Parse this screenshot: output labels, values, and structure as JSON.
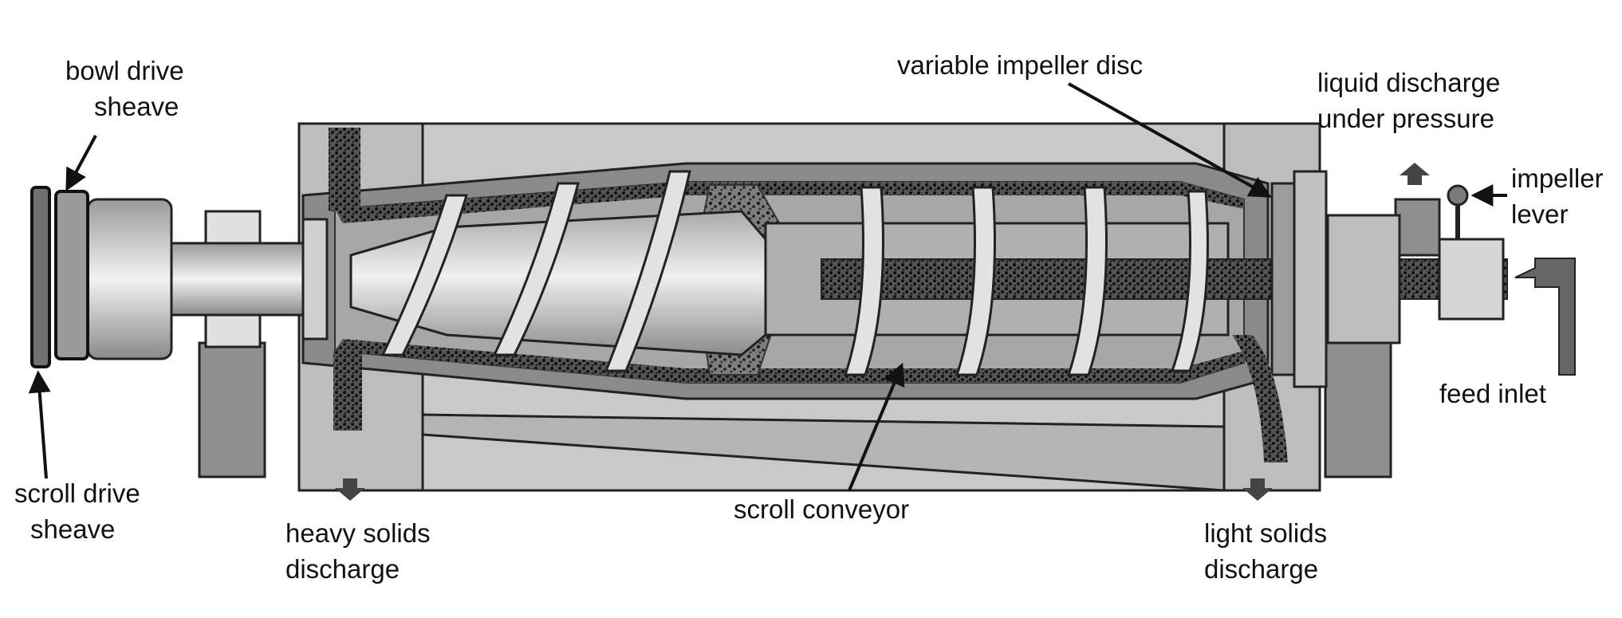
{
  "labels": {
    "bowl_drive_sheave": [
      "bowl drive",
      "sheave"
    ],
    "scroll_drive_sheave": [
      "scroll drive",
      "sheave"
    ],
    "variable_impeller_disc": [
      "variable impeller disc"
    ],
    "liquid_discharge": [
      "liquid discharge",
      "under pressure"
    ],
    "impeller_lever": [
      "impeller",
      "lever"
    ],
    "feed_inlet": [
      "feed inlet"
    ],
    "heavy_solids_discharge": [
      "heavy solids",
      "discharge"
    ],
    "scroll_conveyor": [
      "scroll conveyor"
    ],
    "light_solids_discharge": [
      "light solids",
      "discharge"
    ]
  },
  "colors": {
    "housing": "#c9c9c9",
    "housing_dark": "#8f8f8f",
    "bowl_fill": "#8a8a8a",
    "solids": "#2b2b2b",
    "outline": "#222222",
    "shaft": "#d8d8d8",
    "text": "#111111"
  }
}
